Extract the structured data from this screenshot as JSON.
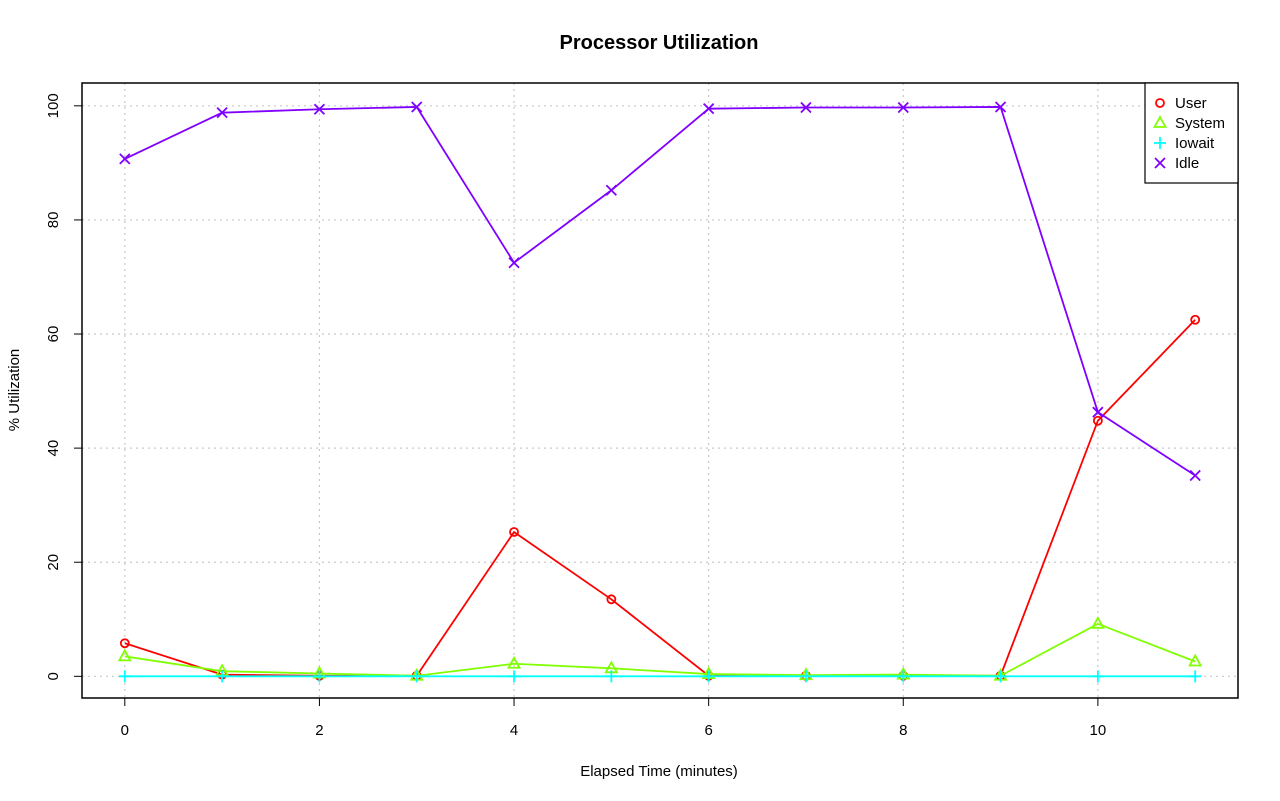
{
  "chart_data": {
    "type": "line",
    "title": "Processor Utilization",
    "xlabel": "Elapsed Time (minutes)",
    "ylabel": "% Utilization",
    "x": [
      0,
      1,
      2,
      3,
      4,
      5,
      6,
      7,
      8,
      9,
      10,
      11
    ],
    "xlim": [
      -0.44,
      11.44
    ],
    "ylim": [
      -3.8,
      104
    ],
    "xticks": [
      0,
      2,
      4,
      6,
      8,
      10
    ],
    "yticks": [
      0,
      20,
      40,
      60,
      80,
      100
    ],
    "grid": true,
    "legend_position": "top-right",
    "series": [
      {
        "name": "User",
        "color": "#ff0000",
        "marker": "circle",
        "values": [
          5.8,
          0.3,
          0.1,
          0.1,
          25.3,
          13.5,
          0.1,
          0.1,
          0.1,
          0.1,
          44.8,
          62.5
        ]
      },
      {
        "name": "System",
        "color": "#80ff00",
        "marker": "triangle",
        "values": [
          3.5,
          0.9,
          0.5,
          0.1,
          2.2,
          1.4,
          0.4,
          0.2,
          0.3,
          0.1,
          9.2,
          2.6
        ]
      },
      {
        "name": "Iowait",
        "color": "#00ffff",
        "marker": "plus",
        "values": [
          0,
          0,
          0,
          0,
          0,
          0,
          0,
          0,
          0,
          0,
          0,
          0
        ]
      },
      {
        "name": "Idle",
        "color": "#8000ff",
        "marker": "cross",
        "values": [
          90.7,
          98.8,
          99.4,
          99.8,
          72.5,
          85.2,
          99.5,
          99.7,
          99.7,
          99.8,
          46.3,
          35.2
        ]
      }
    ]
  }
}
